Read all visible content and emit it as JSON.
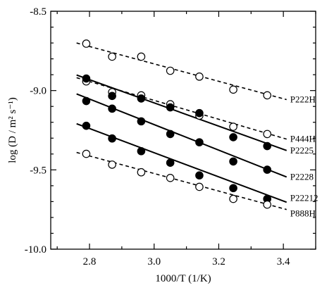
{
  "chart_data": {
    "type": "scatter",
    "title": "",
    "xlabel": "1000/T (1/K)",
    "ylabel": "log (D / m² s⁻¹)",
    "xlim": [
      2.68,
      3.5
    ],
    "ylim": [
      -10.0,
      -8.5
    ],
    "xticks": [
      2.8,
      3.0,
      3.2,
      3.4
    ],
    "xtick_labels": [
      "2.8",
      "3.0",
      "3.2",
      "3.4"
    ],
    "yticks": [
      -10.0,
      -9.5,
      -9.0,
      -8.5
    ],
    "ytick_labels": [
      "-10.0",
      "-9.5",
      "-9.0",
      "-8.5"
    ],
    "grid": false,
    "legend": "none",
    "x": [
      2.79,
      2.87,
      2.96,
      3.05,
      3.14,
      3.245,
      3.35
    ],
    "series": [
      {
        "name": "P222H",
        "marker": "open",
        "line": "dashed",
        "values": [
          -8.704,
          -8.786,
          -8.786,
          -8.875,
          -8.912,
          -8.994,
          -9.03
        ],
        "fit": [
          -8.7,
          -9.057
        ]
      },
      {
        "name": "P444H",
        "marker": "open",
        "line": "dashed",
        "values": [
          -8.942,
          -9.01,
          -9.03,
          -9.086,
          -9.158,
          -9.228,
          -9.274
        ],
        "fit": [
          -8.919,
          -9.306
        ]
      },
      {
        "name": "P2225",
        "marker": "filled",
        "line": "solid",
        "values": [
          -8.924,
          -9.034,
          -9.05,
          -9.106,
          -9.142,
          -9.294,
          -9.35
        ],
        "fit": [
          -8.902,
          -9.378
        ]
      },
      {
        "name": "P2228",
        "marker": "filled",
        "line": "solid",
        "values": [
          -9.066,
          -9.114,
          -9.194,
          -9.274,
          -9.326,
          -9.447,
          -9.499
        ],
        "fit": [
          -9.021,
          -9.545
        ]
      },
      {
        "name": "P22212",
        "marker": "filled",
        "line": "solid",
        "values": [
          -9.222,
          -9.302,
          -9.382,
          -9.455,
          -9.535,
          -9.615,
          -9.683
        ],
        "fit": [
          -9.209,
          -9.704
        ]
      },
      {
        "name": "P888H",
        "marker": "open",
        "line": "dashed",
        "values": [
          -9.399,
          -9.467,
          -9.515,
          -9.551,
          -9.607,
          -9.683,
          -9.719
        ],
        "fit": [
          -9.39,
          -9.75
        ]
      }
    ],
    "fit_x": [
      2.76,
      3.41
    ]
  }
}
